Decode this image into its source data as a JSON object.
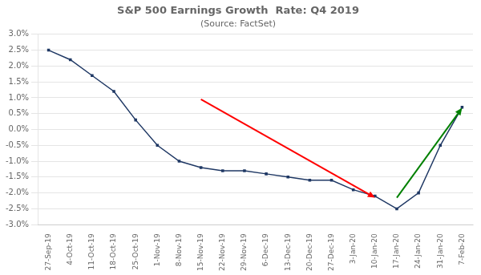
{
  "chart_data": {
    "type": "line",
    "title": "S&P 500 Earnings Growth  Rate: Q4 2019",
    "subtitle": "(Source: FactSet)",
    "categories": [
      "27-Sep-19",
      "4-Oct-19",
      "11-Oct-19",
      "18-Oct-19",
      "25-Oct-19",
      "1-Nov-19",
      "8-Nov-19",
      "15-Nov-19",
      "22-Nov-19",
      "29-Nov-19",
      "6-Dec-19",
      "13-Dec-19",
      "20-Dec-19",
      "27-Dec-19",
      "3-Jan-20",
      "10-Jan-20",
      "17-Jan-20",
      "24-Jan-20",
      "31-Jan-20",
      "7-Feb-20"
    ],
    "values": [
      0.025,
      0.022,
      0.017,
      0.012,
      0.003,
      -0.005,
      -0.01,
      -0.012,
      -0.013,
      -0.013,
      -0.014,
      -0.015,
      -0.016,
      -0.016,
      -0.019,
      -0.021,
      -0.025,
      -0.02,
      -0.005,
      0.007
    ],
    "color": "#1f3864",
    "marker": "square",
    "ylim": [
      -0.03,
      0.03
    ],
    "yticks": [
      {
        "value": -0.03,
        "label": "-3.0%"
      },
      {
        "value": -0.025,
        "label": "-2.5%"
      },
      {
        "value": -0.02,
        "label": "-2.0%"
      },
      {
        "value": -0.015,
        "label": "-1.5%"
      },
      {
        "value": -0.01,
        "label": "-1.0%"
      },
      {
        "value": -0.005,
        "label": "-0.5%"
      },
      {
        "value": 0.0,
        "label": "0.0%"
      },
      {
        "value": 0.005,
        "label": "0.5%"
      },
      {
        "value": 0.01,
        "label": "1.0%"
      },
      {
        "value": 0.015,
        "label": "1.5%"
      },
      {
        "value": 0.02,
        "label": "2.0%"
      },
      {
        "value": 0.025,
        "label": "2.5%"
      },
      {
        "value": 0.03,
        "label": "3.0%"
      }
    ],
    "grid": true,
    "arrows": [
      {
        "x_start": "15-Nov-19",
        "y_start": 0.0095,
        "x_end": "10-Jan-20",
        "y_end": -0.0215,
        "color": "#ff0000"
      },
      {
        "x_start": "17-Jan-20",
        "y_start": -0.0215,
        "x_end": "7-Feb-20",
        "y_end": 0.0068,
        "color": "#008000"
      }
    ]
  }
}
